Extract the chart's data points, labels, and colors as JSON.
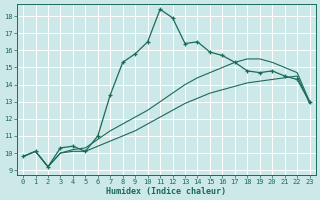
{
  "xlabel": "Humidex (Indice chaleur)",
  "bg_color": "#cce8e8",
  "grid_color": "#b0d8d8",
  "line_color": "#1a6b5a",
  "xlim": [
    -0.5,
    23.5
  ],
  "ylim": [
    8.7,
    18.7
  ],
  "yticks": [
    9,
    10,
    11,
    12,
    13,
    14,
    15,
    16,
    17,
    18
  ],
  "xticks": [
    0,
    1,
    2,
    3,
    4,
    5,
    6,
    7,
    8,
    9,
    10,
    11,
    12,
    13,
    14,
    15,
    16,
    17,
    18,
    19,
    20,
    21,
    22,
    23
  ],
  "line1_x": [
    0,
    1,
    2,
    3,
    4,
    5,
    6,
    7,
    8,
    9,
    10,
    11,
    12,
    13,
    14,
    15,
    16,
    17,
    18,
    19,
    20,
    21,
    22,
    23
  ],
  "line1_y": [
    9.8,
    10.1,
    9.2,
    10.3,
    10.4,
    10.1,
    11.0,
    13.4,
    15.3,
    15.8,
    16.5,
    18.4,
    17.9,
    16.4,
    16.5,
    15.9,
    15.7,
    15.3,
    14.8,
    14.7,
    14.8,
    14.5,
    14.3,
    13.0
  ],
  "line2_x": [
    0,
    1,
    2,
    3,
    4,
    5,
    6,
    7,
    8,
    9,
    10,
    11,
    12,
    13,
    14,
    15,
    16,
    17,
    18,
    19,
    20,
    21,
    22,
    23
  ],
  "line2_y": [
    9.8,
    10.1,
    9.2,
    10.0,
    10.2,
    10.3,
    10.8,
    11.3,
    11.7,
    12.1,
    12.5,
    13.0,
    13.5,
    14.0,
    14.4,
    14.7,
    15.0,
    15.3,
    15.5,
    15.5,
    15.3,
    15.0,
    14.7,
    13.0
  ],
  "line3_x": [
    0,
    1,
    2,
    3,
    4,
    5,
    6,
    7,
    8,
    9,
    10,
    11,
    12,
    13,
    14,
    15,
    16,
    17,
    18,
    19,
    20,
    21,
    22,
    23
  ],
  "line3_y": [
    9.8,
    10.1,
    9.2,
    10.0,
    10.1,
    10.1,
    10.4,
    10.7,
    11.0,
    11.3,
    11.7,
    12.1,
    12.5,
    12.9,
    13.2,
    13.5,
    13.7,
    13.9,
    14.1,
    14.2,
    14.3,
    14.4,
    14.5,
    12.9
  ],
  "markers1_x": [
    0,
    1,
    2,
    3,
    4,
    5,
    6,
    7,
    8,
    9,
    10,
    11,
    12,
    13,
    14,
    15,
    16,
    17,
    18,
    19,
    20,
    21,
    22,
    23
  ],
  "markers1_y": [
    9.8,
    10.1,
    9.2,
    10.3,
    10.4,
    10.1,
    11.0,
    13.4,
    15.3,
    15.8,
    16.5,
    18.4,
    17.9,
    16.4,
    16.5,
    15.9,
    15.7,
    15.3,
    14.8,
    14.7,
    14.8,
    14.5,
    14.3,
    13.0
  ]
}
